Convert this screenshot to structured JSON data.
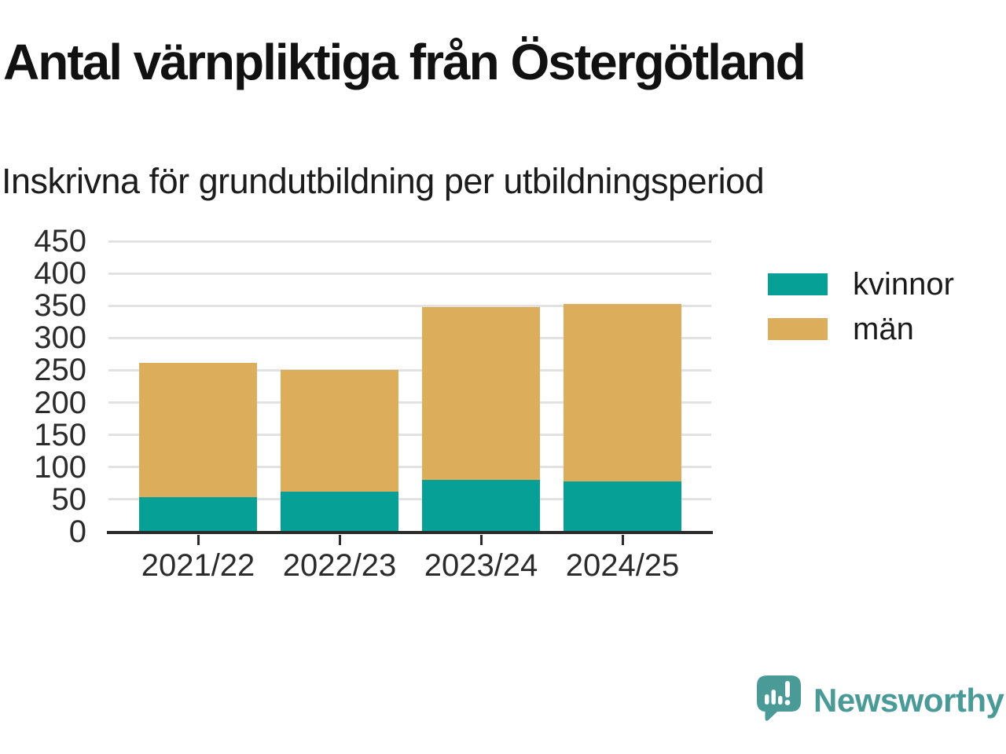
{
  "title": "Antal värnpliktiga från Östergötland",
  "subtitle": "Inskrivna för grundutbildning per utbildningsperiod",
  "chart_data": {
    "type": "bar",
    "stacked": true,
    "title": "Antal värnpliktiga från Östergötland",
    "subtitle": "Inskrivna för grundutbildning per utbildningsperiod",
    "categories": [
      "2021/22",
      "2022/23",
      "2023/24",
      "2024/25"
    ],
    "series": [
      {
        "name": "kvinnor",
        "color": "#07a097",
        "values": [
          54,
          62,
          80,
          78
        ]
      },
      {
        "name": "män",
        "color": "#dcad5b",
        "values": [
          208,
          189,
          267,
          275
        ]
      }
    ],
    "stack_totals": [
      262,
      251,
      347,
      353
    ],
    "xlabel": "",
    "ylabel": "",
    "ylim": [
      0,
      450
    ],
    "yticks": [
      0,
      50,
      100,
      150,
      200,
      250,
      300,
      350,
      400,
      450
    ],
    "grid": true,
    "legend_position": "right"
  },
  "legend": {
    "items": [
      {
        "label": "kvinnor",
        "color": "#07a097"
      },
      {
        "label": "män",
        "color": "#dcad5b"
      }
    ]
  },
  "branding": {
    "name": "Newsworthy",
    "logo_icon": "speech-bubble-bar-chart-exclamation-icon",
    "color": "#4a9a97"
  },
  "colors": {
    "kvinnor": "#07a097",
    "man": "#dcad5b",
    "grid": "#e2e2e2",
    "axis": "#2b2b2b",
    "tick_text": "#2b2b2b",
    "background": "#ffffff"
  }
}
